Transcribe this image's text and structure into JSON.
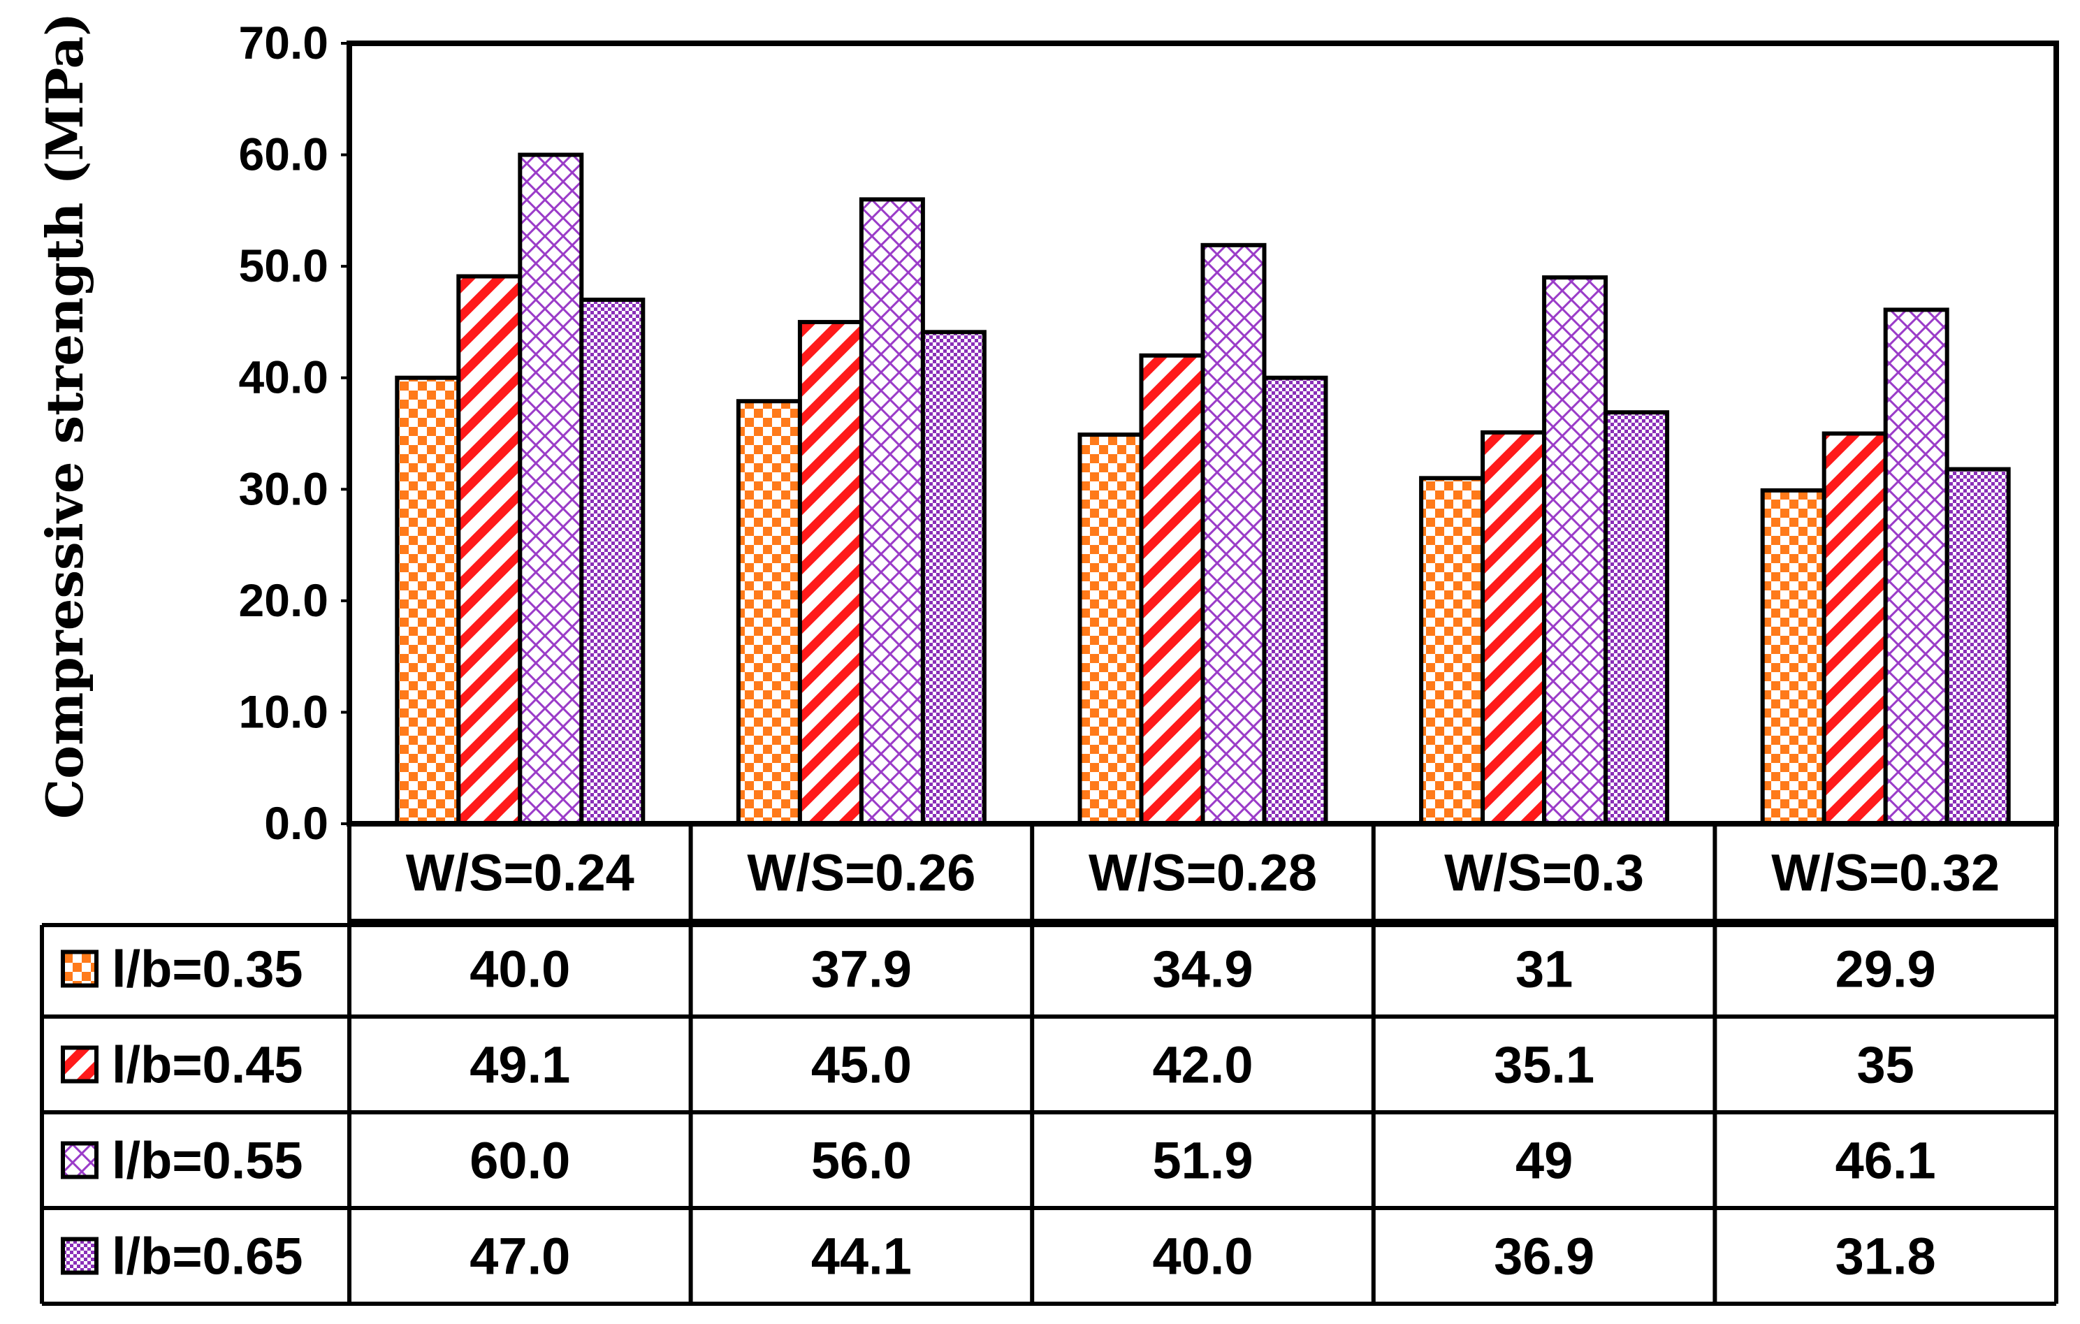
{
  "chart_data": {
    "type": "bar",
    "ylabel": "Compressive strength (MPa)",
    "ylim": [
      0,
      70
    ],
    "yticks": [
      "0.0",
      "10.0",
      "20.0",
      "30.0",
      "40.0",
      "50.0",
      "60.0",
      "70.0"
    ],
    "categories": [
      "W/S=0.24",
      "W/S=0.26",
      "W/S=0.28",
      "W/S=0.3",
      "W/S=0.32"
    ],
    "series": [
      {
        "name": "l/b=0.35",
        "pattern": "checker",
        "color": "#ff7a1a",
        "values": [
          40.0,
          37.9,
          34.9,
          31,
          29.9
        ],
        "labels": [
          "40.0",
          "37.9",
          "34.9",
          "31",
          "29.9"
        ]
      },
      {
        "name": "l/b=0.45",
        "pattern": "diagonal-stripes",
        "color": "#ff1a1a",
        "values": [
          49.1,
          45.0,
          42.0,
          35.1,
          35
        ],
        "labels": [
          "49.1",
          "45.0",
          "42.0",
          "35.1",
          "35"
        ]
      },
      {
        "name": "l/b=0.55",
        "pattern": "lattice",
        "color": "#9a3bc8",
        "values": [
          60.0,
          56.0,
          51.9,
          49,
          46.1
        ],
        "labels": [
          "60.0",
          "56.0",
          "51.9",
          "49",
          "46.1"
        ]
      },
      {
        "name": "l/b=0.65",
        "pattern": "dense-dots",
        "color": "#8a2fb8",
        "values": [
          47.0,
          44.1,
          40.0,
          36.9,
          31.8
        ],
        "labels": [
          "47.0",
          "44.1",
          "40.0",
          "36.9",
          "31.8"
        ]
      }
    ],
    "grid": false,
    "legend": "data-table-below"
  }
}
